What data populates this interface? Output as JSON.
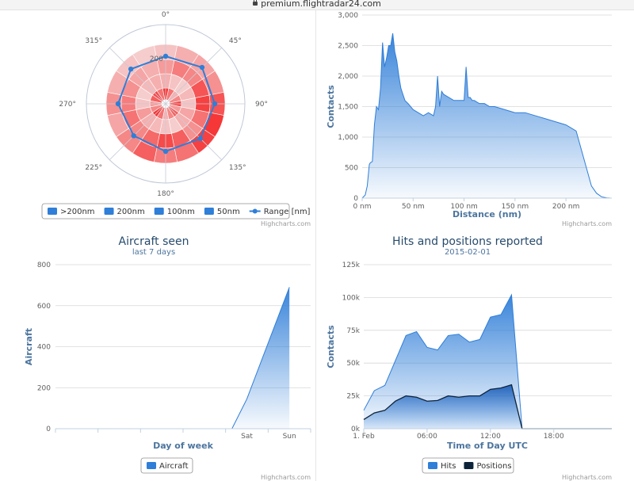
{
  "browser": {
    "url": "premium.flightradar24.com"
  },
  "credits": "Highcharts.com",
  "chart_data": [
    {
      "id": "polar",
      "type": "polar",
      "angle_labels": [
        "0°",
        "45°",
        "90°",
        "135°",
        "180°",
        "225°",
        "270°",
        "315°"
      ],
      "radial_label": "200",
      "range_points": [
        {
          "angle": 0,
          "r": 0.6
        },
        {
          "angle": 45,
          "r": 0.65
        },
        {
          "angle": 90,
          "r": 0.62
        },
        {
          "angle": 135,
          "r": 0.62
        },
        {
          "angle": 180,
          "r": 0.6
        },
        {
          "angle": 225,
          "r": 0.57
        },
        {
          "angle": 270,
          "r": 0.6
        },
        {
          "angle": 315,
          "r": 0.62
        }
      ],
      "legend": [
        {
          "label": ">200nm",
          "color": "#2f7ed8"
        },
        {
          "label": "200nm",
          "color": "#2f7ed8"
        },
        {
          "label": "100nm",
          "color": "#2f7ed8"
        },
        {
          "label": "50nm",
          "color": "#2f7ed8"
        },
        {
          "label": "Range [nm]",
          "color": "#2f7ed8",
          "marker": "line"
        }
      ]
    },
    {
      "id": "distance",
      "type": "area",
      "xlabel": "Distance (nm)",
      "ylabel": "Contacts",
      "xlim": [
        0,
        245
      ],
      "ylim": [
        0,
        3000
      ],
      "x_ticks": [
        0,
        50,
        100,
        150,
        200
      ],
      "x_tick_labels": [
        "0 nm",
        "50 nm",
        "100 nm",
        "150 nm",
        "200 nm"
      ],
      "y_ticks": [
        0,
        500,
        1000,
        1500,
        2000,
        2500,
        3000
      ],
      "y_tick_labels": [
        "0",
        "500",
        "1,000",
        "1,500",
        "2,000",
        "2,500",
        "3,000"
      ],
      "series": [
        {
          "x": [
            0,
            3,
            5,
            7,
            8,
            10,
            12,
            14,
            16,
            18,
            20,
            22,
            24,
            26,
            28,
            30,
            32,
            34,
            36,
            38,
            40,
            42,
            45,
            50,
            55,
            60,
            65,
            70,
            72,
            74,
            76,
            78,
            80,
            85,
            90,
            95,
            100,
            102,
            104,
            106,
            108,
            110,
            115,
            120,
            125,
            130,
            140,
            150,
            160,
            170,
            180,
            190,
            200,
            205,
            210,
            215,
            220,
            225,
            230,
            235,
            240,
            244
          ],
          "values": [
            0,
            50,
            200,
            550,
            580,
            600,
            1200,
            1500,
            1450,
            1800,
            2550,
            2150,
            2300,
            2500,
            2500,
            2700,
            2400,
            2250,
            2000,
            1800,
            1700,
            1600,
            1550,
            1450,
            1400,
            1350,
            1400,
            1350,
            1500,
            2000,
            1500,
            1750,
            1700,
            1650,
            1600,
            1600,
            1600,
            2150,
            1650,
            1650,
            1600,
            1600,
            1550,
            1550,
            1500,
            1500,
            1450,
            1400,
            1400,
            1350,
            1300,
            1250,
            1200,
            1150,
            1100,
            800,
            500,
            200,
            80,
            20,
            5,
            0
          ]
        }
      ]
    },
    {
      "id": "aircraft",
      "type": "area",
      "title": "Aircraft seen",
      "subtitle": "last 7 days",
      "xlabel": "Day of week",
      "ylabel": "Aircraft",
      "ylim": [
        0,
        800
      ],
      "y_ticks": [
        0,
        200,
        400,
        600,
        800
      ],
      "categories": [
        "",
        "",
        "",
        "",
        "Sat",
        "Sun"
      ],
      "x": [
        0,
        1,
        2,
        3,
        4.15,
        4.5,
        5.5
      ],
      "values": [
        0,
        0,
        0,
        0,
        0,
        145,
        690
      ],
      "legend": [
        {
          "label": "Aircraft",
          "color": "#2f7ed8"
        }
      ]
    },
    {
      "id": "hits",
      "type": "area",
      "title": "Hits and positions reported",
      "subtitle": "2015-02-01",
      "xlabel": "Time of Day UTC",
      "ylabel": "Contacts",
      "ylim": [
        0,
        125000
      ],
      "y_ticks": [
        0,
        25000,
        50000,
        75000,
        100000,
        125000
      ],
      "y_tick_labels": [
        "0k",
        "25k",
        "50k",
        "75k",
        "100k",
        "125k"
      ],
      "x_ticks": [
        0,
        6,
        12,
        18
      ],
      "x_tick_labels": [
        "1. Feb",
        "06:00",
        "12:00",
        "18:00"
      ],
      "xlim": [
        0,
        23.5
      ],
      "series": [
        {
          "name": "Hits",
          "color": "#2f7ed8",
          "x": [
            0,
            1,
            2,
            3,
            4,
            5,
            6,
            7,
            8,
            9,
            10,
            11,
            12,
            13,
            14,
            15,
            23.5
          ],
          "values": [
            14000,
            29000,
            33000,
            52000,
            71000,
            74000,
            62000,
            60000,
            71000,
            72000,
            66000,
            68000,
            85000,
            87000,
            102000,
            0,
            0
          ]
        },
        {
          "name": "Positions",
          "color": "#0d233a",
          "x": [
            0,
            1,
            2,
            3,
            4,
            5,
            6,
            7,
            8,
            9,
            10,
            11,
            12,
            13,
            14,
            15,
            23.5
          ],
          "values": [
            7000,
            12000,
            14000,
            21000,
            25000,
            24000,
            21000,
            21500,
            25000,
            24000,
            25000,
            25000,
            30000,
            31000,
            33500,
            0,
            0
          ]
        }
      ]
    }
  ]
}
